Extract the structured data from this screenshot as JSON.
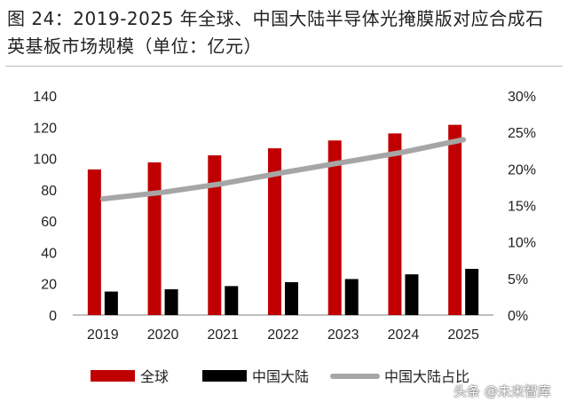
{
  "title": "图 24：2019-2025 年全球、中国大陆半导体光掩膜版对应合成石英基板市场规模（单位：亿元）",
  "watermark": "头条 @未来智库",
  "chart_data": {
    "type": "bar+line",
    "categories": [
      "2019",
      "2020",
      "2021",
      "2022",
      "2023",
      "2024",
      "2025"
    ],
    "series": [
      {
        "name": "全球",
        "kind": "bar",
        "axis": "left",
        "color": "#c00000",
        "values": [
          93,
          97.5,
          102,
          106.5,
          111.5,
          116,
          121.5
        ]
      },
      {
        "name": "中国大陆",
        "kind": "bar",
        "axis": "left",
        "color": "#000000",
        "values": [
          15,
          16.5,
          18.5,
          21,
          23,
          26,
          29.5
        ]
      },
      {
        "name": "中国大陆占比",
        "kind": "line",
        "axis": "right",
        "color": "#a6a6a6",
        "values": [
          0.159,
          0.168,
          0.18,
          0.195,
          0.209,
          0.223,
          0.24
        ]
      }
    ],
    "y_left": {
      "min": 0,
      "max": 140,
      "step": 20,
      "ticks": [
        "0",
        "20",
        "40",
        "60",
        "80",
        "100",
        "120",
        "140"
      ]
    },
    "y_right": {
      "min": 0,
      "max": 0.3,
      "step": 0.05,
      "ticks": [
        "0%",
        "5%",
        "10%",
        "15%",
        "20%",
        "25%",
        "30%"
      ]
    },
    "grid": false,
    "legend_position": "bottom",
    "legend": [
      "全球",
      "中国大陆",
      "中国大陆占比"
    ]
  }
}
